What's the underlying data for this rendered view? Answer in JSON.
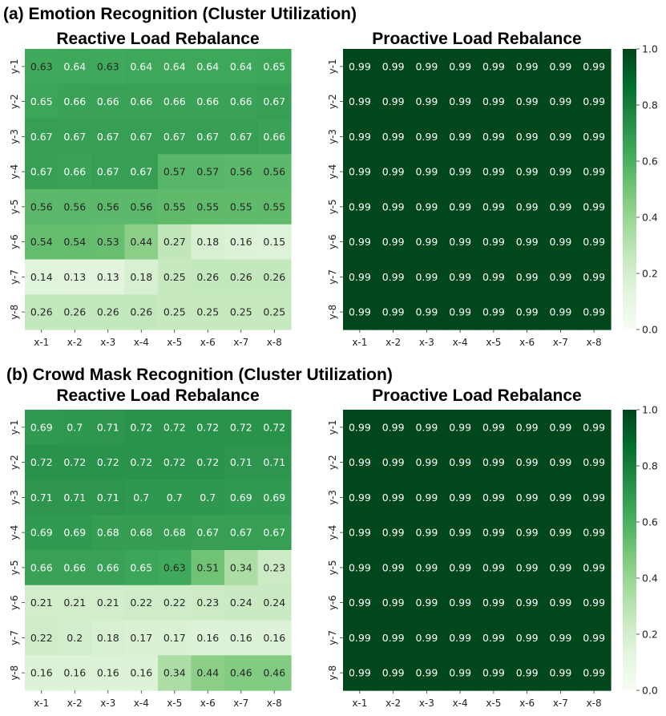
{
  "figure": {
    "sections": [
      {
        "title": "(a) Emotion Recognition (Cluster Utilization)"
      },
      {
        "title": "(b) Crowd Mask Recognition  (Cluster Utilization)"
      }
    ]
  },
  "colorbar": {
    "ticks": [
      "0.0",
      "0.2",
      "0.4",
      "0.6",
      "0.8",
      "1.0"
    ],
    "range": [
      0,
      1
    ],
    "colors": [
      "#f7fcf5",
      "#e5f5e0",
      "#c7e9c0",
      "#a1d99b",
      "#74c476",
      "#41ab5d",
      "#238b45",
      "#006d2c",
      "#00441b"
    ]
  },
  "chart_data": [
    {
      "type": "heatmap",
      "title": "Reactive Load Rebalance",
      "x_labels": [
        "x-1",
        "x-2",
        "x-3",
        "x-4",
        "x-5",
        "x-6",
        "x-7",
        "x-8"
      ],
      "y_labels": [
        "y-1",
        "y-2",
        "y-3",
        "y-4",
        "y-5",
        "y-6",
        "y-7",
        "y-8"
      ],
      "values": [
        [
          0.63,
          0.64,
          0.63,
          0.64,
          0.64,
          0.64,
          0.64,
          0.65
        ],
        [
          0.65,
          0.66,
          0.66,
          0.66,
          0.66,
          0.66,
          0.66,
          0.67
        ],
        [
          0.67,
          0.67,
          0.67,
          0.67,
          0.67,
          0.67,
          0.67,
          0.66
        ],
        [
          0.67,
          0.66,
          0.67,
          0.67,
          0.57,
          0.57,
          0.56,
          0.56
        ],
        [
          0.56,
          0.56,
          0.56,
          0.56,
          0.55,
          0.55,
          0.55,
          0.55
        ],
        [
          0.54,
          0.54,
          0.53,
          0.44,
          0.27,
          0.18,
          0.16,
          0.15
        ],
        [
          0.14,
          0.13,
          0.13,
          0.18,
          0.25,
          0.26,
          0.26,
          0.26
        ],
        [
          0.26,
          0.26,
          0.26,
          0.26,
          0.25,
          0.25,
          0.25,
          0.25
        ]
      ],
      "vmin": 0,
      "vmax": 1
    },
    {
      "type": "heatmap",
      "title": "Proactive Load Rebalance",
      "x_labels": [
        "x-1",
        "x-2",
        "x-3",
        "x-4",
        "x-5",
        "x-6",
        "x-7",
        "x-8"
      ],
      "y_labels": [
        "y-1",
        "y-2",
        "y-3",
        "y-4",
        "y-5",
        "y-6",
        "y-7",
        "y-8"
      ],
      "values": [
        [
          0.99,
          0.99,
          0.99,
          0.99,
          0.99,
          0.99,
          0.99,
          0.99
        ],
        [
          0.99,
          0.99,
          0.99,
          0.99,
          0.99,
          0.99,
          0.99,
          0.99
        ],
        [
          0.99,
          0.99,
          0.99,
          0.99,
          0.99,
          0.99,
          0.99,
          0.99
        ],
        [
          0.99,
          0.99,
          0.99,
          0.99,
          0.99,
          0.99,
          0.99,
          0.99
        ],
        [
          0.99,
          0.99,
          0.99,
          0.99,
          0.99,
          0.99,
          0.99,
          0.99
        ],
        [
          0.99,
          0.99,
          0.99,
          0.99,
          0.99,
          0.99,
          0.99,
          0.99
        ],
        [
          0.99,
          0.99,
          0.99,
          0.99,
          0.99,
          0.99,
          0.99,
          0.99
        ],
        [
          0.99,
          0.99,
          0.99,
          0.99,
          0.99,
          0.99,
          0.99,
          0.99
        ]
      ],
      "vmin": 0,
      "vmax": 1
    },
    {
      "type": "heatmap",
      "title": "Reactive Load Rebalance",
      "x_labels": [
        "x-1",
        "x-2",
        "x-3",
        "x-4",
        "x-5",
        "x-6",
        "x-7",
        "x-8"
      ],
      "y_labels": [
        "y-1",
        "y-2",
        "y-3",
        "y-4",
        "y-5",
        "y-6",
        "y-7",
        "y-8"
      ],
      "values": [
        [
          0.69,
          0.7,
          0.71,
          0.72,
          0.72,
          0.72,
          0.72,
          0.72
        ],
        [
          0.72,
          0.72,
          0.72,
          0.72,
          0.72,
          0.72,
          0.71,
          0.71
        ],
        [
          0.71,
          0.71,
          0.71,
          0.7,
          0.7,
          0.7,
          0.69,
          0.69
        ],
        [
          0.69,
          0.69,
          0.68,
          0.68,
          0.68,
          0.67,
          0.67,
          0.67
        ],
        [
          0.66,
          0.66,
          0.66,
          0.65,
          0.63,
          0.51,
          0.34,
          0.23
        ],
        [
          0.21,
          0.21,
          0.21,
          0.22,
          0.22,
          0.23,
          0.24,
          0.24
        ],
        [
          0.22,
          0.2,
          0.18,
          0.17,
          0.17,
          0.16,
          0.16,
          0.16
        ],
        [
          0.16,
          0.16,
          0.16,
          0.16,
          0.34,
          0.44,
          0.46,
          0.46
        ]
      ],
      "vmin": 0,
      "vmax": 1
    },
    {
      "type": "heatmap",
      "title": "Proactive Load Rebalance",
      "x_labels": [
        "x-1",
        "x-2",
        "x-3",
        "x-4",
        "x-5",
        "x-6",
        "x-7",
        "x-8"
      ],
      "y_labels": [
        "y-1",
        "y-2",
        "y-3",
        "y-4",
        "y-5",
        "y-6",
        "y-7",
        "y-8"
      ],
      "values": [
        [
          0.99,
          0.99,
          0.99,
          0.99,
          0.99,
          0.99,
          0.99,
          0.99
        ],
        [
          0.99,
          0.99,
          0.99,
          0.99,
          0.99,
          0.99,
          0.99,
          0.99
        ],
        [
          0.99,
          0.99,
          0.99,
          0.99,
          0.99,
          0.99,
          0.99,
          0.99
        ],
        [
          0.99,
          0.99,
          0.99,
          0.99,
          0.99,
          0.99,
          0.99,
          0.99
        ],
        [
          0.99,
          0.99,
          0.99,
          0.99,
          0.99,
          0.99,
          0.99,
          0.99
        ],
        [
          0.99,
          0.99,
          0.99,
          0.99,
          0.99,
          0.99,
          0.99,
          0.99
        ],
        [
          0.99,
          0.99,
          0.99,
          0.99,
          0.99,
          0.99,
          0.99,
          0.99
        ],
        [
          0.99,
          0.99,
          0.99,
          0.99,
          0.99,
          0.99,
          0.99,
          0.99
        ]
      ],
      "vmin": 0,
      "vmax": 1
    }
  ]
}
